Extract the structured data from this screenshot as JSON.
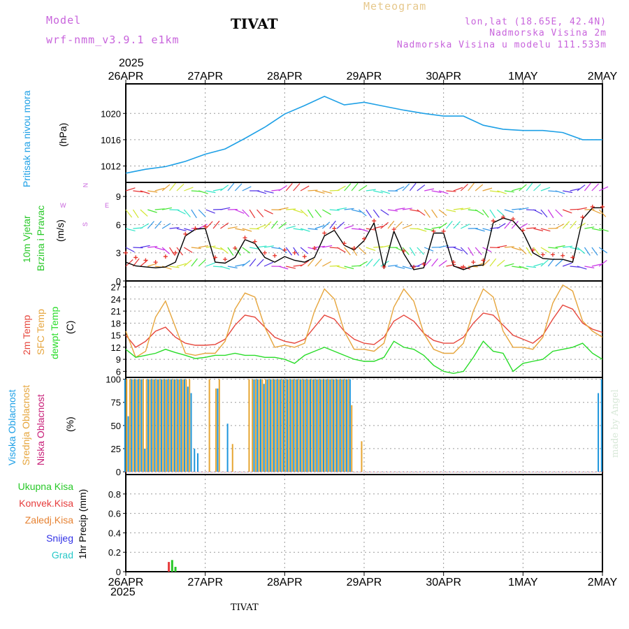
{
  "header": {
    "model_label": "Model",
    "model_name": "wrf-nmm_v3.9.1 e1km",
    "station_title": "TIVAT",
    "meteogram_label": "Meteogram",
    "lonlat": "lon,lat (18.65E, 42.4N)",
    "elevation": "Nadmorska Visina 2m",
    "model_elevation": "Nadmorska Visina u modelu 111.533m",
    "year_top": "2025"
  },
  "footer": {
    "year_bottom": "2025",
    "station": "TIVAT",
    "credit": "made by Angel"
  },
  "panel_labels": {
    "pressure": [
      "Pritisak na nivou mora"
    ],
    "pressure_unit": "(hPa)",
    "wind_a": "10m Vjetar",
    "wind_b": "Brzina i Pravac",
    "wind_unit": "(m/s)",
    "compass_n": "N",
    "compass_e": "E",
    "compass_w": "W",
    "compass_s": "S",
    "temp_a": "2m Temp",
    "temp_b": "SFC Temp",
    "temp_c": "dewpt Temp",
    "temp_unit": "(C)",
    "cloud_a": "Visoka Oblacnost",
    "cloud_b": "Srednja Oblacnost",
    "cloud_c": "Niska Oblacnost",
    "cloud_unit": "(%)",
    "precip_a": "Ukupna Kisa",
    "precip_b": "Konvek.Kisa",
    "precip_c": "Zaledj.Kisa",
    "precip_d": "Snijeg",
    "precip_e": "Grad",
    "precip_unit": "1hr Precip (mm)"
  },
  "colors": {
    "pressure": "#1ea0e6",
    "temp2m": "#e6463c",
    "sfc": "#e6a53c",
    "dewpt": "#28dc28",
    "wind_line": "#000000",
    "wind_gust": "#e63228",
    "cloud_high": "#1e96dc",
    "cloud_mid": "#e6a532",
    "cloud_low": "#c81e78",
    "model_text": "#c864dc",
    "meteogram_text": "#e6c88c",
    "precip_total": "#28c828",
    "precip_conv": "#e63c3c",
    "precip_frz": "#e68232",
    "snow": "#3232e6",
    "hail": "#28c8c8"
  },
  "chart_data": [
    {
      "type": "line",
      "name": "pressure",
      "x_ticks": [
        "26APR",
        "27APR",
        "28APR",
        "29APR",
        "30APR",
        "1MAY",
        "2MAY"
      ],
      "ylabel": "(hPa)",
      "ylim": [
        1009.5,
        1024.5
      ],
      "y_ticks": [
        1012,
        1016,
        1020
      ],
      "grid": true,
      "x_hours": [
        0,
        6,
        12,
        18,
        24,
        30,
        36,
        42,
        48,
        54,
        60,
        66,
        72,
        78,
        84,
        90,
        96,
        102,
        108,
        114,
        120,
        126,
        132,
        138,
        144
      ],
      "values": [
        1010.9,
        1011.5,
        1011.9,
        1012.7,
        1013.8,
        1014.6,
        1016.2,
        1017.9,
        1019.9,
        1021.2,
        1022.6,
        1021.3,
        1021.7,
        1021.1,
        1020.5,
        1020.0,
        1019.6,
        1019.6,
        1018.2,
        1017.6,
        1017.4,
        1017.4,
        1017.1,
        1016.0,
        1016.0
      ]
    },
    {
      "type": "line",
      "name": "wind",
      "ylabel": "(m/s)",
      "ylim": [
        0,
        10.5
      ],
      "y_ticks": [
        0,
        3,
        6,
        9
      ],
      "grid": true,
      "x_hours": [
        0,
        3,
        6,
        9,
        12,
        15,
        18,
        21,
        24,
        27,
        30,
        33,
        36,
        39,
        42,
        45,
        48,
        51,
        54,
        57,
        60,
        63,
        66,
        69,
        72,
        75,
        78,
        81,
        84,
        87,
        90,
        93,
        96,
        99,
        102,
        105,
        108,
        111,
        114,
        117,
        120,
        123,
        126,
        129,
        132,
        135,
        138,
        141,
        144
      ],
      "values": [
        2.0,
        1.6,
        1.5,
        1.4,
        1.5,
        2.0,
        4.8,
        5.5,
        5.6,
        2.0,
        1.9,
        2.5,
        4.4,
        4.0,
        2.5,
        2.0,
        2.6,
        2.2,
        2.0,
        2.5,
        4.8,
        5.4,
        3.8,
        3.3,
        4.3,
        6.2,
        1.3,
        5.3,
        2.9,
        1.2,
        1.4,
        5.1,
        5.1,
        1.6,
        1.2,
        1.6,
        1.7,
        6.2,
        6.7,
        6.4,
        5.2,
        3.0,
        2.4,
        2.3,
        2.3,
        2.0,
        6.6,
        7.8,
        7.8
      ],
      "gust": [
        3.0,
        2.5,
        2.2,
        2.0,
        2.6,
        3.0,
        5.0,
        5.6,
        5.8,
        2.5,
        2.3,
        3.5,
        4.6,
        4.2,
        3.0,
        2.7,
        3.3,
        3.0,
        2.6,
        3.5,
        5.1,
        5.6,
        4.0,
        3.5,
        4.5,
        6.4,
        1.5,
        5.5,
        3.2,
        1.5,
        1.8,
        5.3,
        5.3,
        2.0,
        1.5,
        2.0,
        2.2,
        6.4,
        6.8,
        6.6,
        5.4,
        3.3,
        2.8,
        2.8,
        2.7,
        2.5,
        6.8,
        7.9,
        7.9
      ]
    },
    {
      "type": "line",
      "name": "temperature",
      "ylabel": "(C)",
      "ylim": [
        4.5,
        28.5
      ],
      "y_ticks": [
        6,
        9,
        12,
        15,
        18,
        21,
        24,
        27
      ],
      "grid": true,
      "x_hours": [
        0,
        3,
        6,
        9,
        12,
        15,
        18,
        21,
        24,
        27,
        30,
        33,
        36,
        39,
        42,
        45,
        48,
        51,
        54,
        57,
        60,
        63,
        66,
        69,
        72,
        75,
        78,
        81,
        84,
        87,
        90,
        93,
        96,
        99,
        102,
        105,
        108,
        111,
        114,
        117,
        120,
        123,
        126,
        129,
        132,
        135,
        138,
        141,
        144
      ],
      "series": [
        {
          "name": "2m Temp",
          "values": [
            15.0,
            12.0,
            13.5,
            16.0,
            17.0,
            14.5,
            13.0,
            12.5,
            12.5,
            12.7,
            14.0,
            17.5,
            20.0,
            19.5,
            17.0,
            14.5,
            13.5,
            13.0,
            14.0,
            17.0,
            20.0,
            19.0,
            16.0,
            14.0,
            13.0,
            12.7,
            14.5,
            18.5,
            20.0,
            18.5,
            15.5,
            13.7,
            13.0,
            13.0,
            14.5,
            18.0,
            20.5,
            20.0,
            17.5,
            15.0,
            14.0,
            13.0,
            15.0,
            19.0,
            22.5,
            21.5,
            18.0,
            16.5,
            15.7
          ]
        },
        {
          "name": "SFC Temp",
          "values": [
            16.0,
            9.5,
            11.0,
            19.5,
            23.5,
            17.0,
            10.5,
            10.0,
            10.5,
            10.5,
            13.5,
            21.5,
            25.5,
            24.5,
            17.0,
            12.0,
            12.5,
            12.0,
            13.0,
            21.0,
            26.5,
            24.0,
            16.0,
            11.5,
            11.5,
            11.0,
            13.0,
            22.0,
            26.5,
            23.5,
            15.5,
            11.5,
            10.5,
            10.5,
            13.0,
            21.0,
            26.5,
            24.5,
            16.0,
            12.0,
            12.0,
            11.5,
            14.5,
            23.0,
            27.5,
            26.0,
            18.5,
            16.0,
            14.5
          ]
        },
        {
          "name": "dewpt Temp",
          "values": [
            11.5,
            9.5,
            10.0,
            10.5,
            11.5,
            10.7,
            10.0,
            9.2,
            9.5,
            10.0,
            10.0,
            10.5,
            10.0,
            10.0,
            9.5,
            9.5,
            9.0,
            8.0,
            10.0,
            11.0,
            12.0,
            11.0,
            10.0,
            9.0,
            8.5,
            8.5,
            9.5,
            13.5,
            12.0,
            11.5,
            10.0,
            7.5,
            6.0,
            5.5,
            6.0,
            9.5,
            13.5,
            11.0,
            10.5,
            6.0,
            8.0,
            8.5,
            9.0,
            11.0,
            11.5,
            12.0,
            13.0,
            10.5,
            9.0
          ]
        }
      ]
    },
    {
      "type": "bar",
      "name": "cloud_cover",
      "ylabel": "(%)",
      "ylim": [
        -3,
        102
      ],
      "y_ticks": [
        0,
        25,
        50,
        75,
        100
      ],
      "grid": true,
      "x_hours": [
        0,
        1,
        2,
        3,
        4,
        5,
        6,
        7,
        8,
        9,
        10,
        11,
        12,
        13,
        14,
        15,
        16,
        17,
        18,
        19,
        20,
        21,
        22,
        23,
        24,
        25,
        26,
        27,
        28,
        29,
        30,
        31,
        32,
        33,
        34,
        35,
        36,
        37,
        38,
        39,
        40,
        41,
        42,
        43,
        44,
        45,
        46,
        47,
        48,
        49,
        50,
        51,
        52,
        53,
        54,
        55,
        56,
        57,
        58,
        59,
        60,
        61,
        62,
        63,
        64,
        65,
        66,
        67,
        68,
        69,
        70,
        71,
        72,
        73,
        74,
        75,
        76,
        77,
        78,
        79,
        80,
        81,
        82,
        83,
        84,
        85,
        86,
        87,
        88,
        89,
        90,
        91,
        92,
        93,
        94,
        95,
        96,
        97,
        98,
        99,
        100,
        101,
        102,
        103,
        104,
        105,
        106,
        107,
        108,
        109,
        110,
        111,
        112,
        113,
        114,
        115,
        116,
        117,
        118,
        119,
        120,
        121,
        122,
        123,
        124,
        125,
        126,
        127,
        128,
        129,
        130,
        131,
        132,
        133,
        134,
        135,
        136,
        137,
        138,
        139,
        140,
        141,
        142,
        143,
        144
      ],
      "series": [
        {
          "name": "Visoka Oblacnost",
          "values": [
            100,
            60,
            100,
            100,
            100,
            100,
            25,
            100,
            100,
            100,
            100,
            100,
            100,
            100,
            100,
            100,
            100,
            100,
            100,
            92,
            85,
            25,
            20,
            0,
            0,
            0,
            0,
            0,
            90,
            0,
            0,
            52,
            0,
            0,
            0,
            0,
            0,
            0,
            0,
            100,
            100,
            100,
            95,
            100,
            100,
            100,
            100,
            100,
            100,
            100,
            100,
            100,
            100,
            100,
            100,
            100,
            100,
            100,
            100,
            100,
            100,
            100,
            100,
            100,
            100,
            100,
            100,
            100,
            100,
            0,
            0,
            0,
            0,
            0,
            0,
            0,
            0,
            0,
            0,
            0,
            0,
            0,
            0,
            0,
            0,
            0,
            0,
            0,
            0,
            0,
            0,
            0,
            0,
            0,
            0,
            0,
            0,
            0,
            0,
            0,
            0,
            0,
            0,
            0,
            0,
            0,
            0,
            0,
            0,
            0,
            0,
            0,
            0,
            0,
            0,
            0,
            0,
            0,
            0,
            0,
            0,
            0,
            0,
            0,
            0,
            0,
            0,
            0,
            0,
            0,
            0,
            0,
            0,
            0,
            0,
            0,
            0,
            0,
            0,
            0,
            0,
            0,
            0,
            85,
            100
          ]
        },
        {
          "name": "Srednja Oblacnost",
          "values": [
            100,
            100,
            100,
            100,
            100,
            100,
            100,
            100,
            100,
            100,
            100,
            100,
            100,
            100,
            100,
            100,
            100,
            100,
            100,
            100,
            0,
            0,
            0,
            0,
            0,
            100,
            0,
            90,
            100,
            0,
            0,
            0,
            30,
            0,
            0,
            0,
            0,
            100,
            100,
            100,
            100,
            100,
            100,
            100,
            100,
            100,
            100,
            100,
            100,
            100,
            100,
            100,
            100,
            100,
            100,
            100,
            100,
            100,
            100,
            100,
            100,
            100,
            100,
            100,
            100,
            100,
            100,
            100,
            72,
            0,
            0,
            33,
            0,
            0,
            0,
            0,
            0,
            0,
            0,
            0,
            0,
            0,
            0,
            0,
            0,
            0,
            0,
            0,
            0,
            0,
            0,
            0,
            0,
            0,
            0,
            0,
            0,
            0,
            0,
            0,
            0,
            0,
            0,
            0,
            0,
            0,
            0,
            0,
            0,
            0,
            0,
            0,
            0,
            0,
            0,
            0,
            0,
            0,
            0,
            0,
            0,
            0,
            0,
            0,
            0,
            0,
            0,
            0,
            0,
            0,
            0,
            0,
            0,
            0,
            0,
            0,
            0,
            0,
            0,
            0,
            0,
            0,
            0,
            0,
            0
          ]
        },
        {
          "name": "Niska Oblacnost",
          "values": [
            0,
            0,
            0,
            0,
            0,
            0,
            0,
            0,
            0,
            0,
            0,
            0,
            0,
            0,
            0,
            0,
            0,
            0,
            0,
            0,
            0,
            0,
            0,
            0,
            0,
            0,
            0,
            0,
            0,
            0,
            0,
            0,
            0,
            0,
            0,
            0,
            0,
            0,
            0,
            0,
            0,
            0,
            0,
            0,
            0,
            0,
            0,
            0,
            0,
            0,
            0,
            0,
            0,
            0,
            0,
            0,
            0,
            0,
            0,
            0,
            0,
            0,
            0,
            0,
            0,
            0,
            0,
            0,
            0,
            0,
            0,
            0,
            0,
            0,
            0,
            0,
            0,
            0,
            0,
            0,
            0,
            0,
            0,
            0,
            0,
            0,
            0,
            0,
            0,
            0,
            0,
            0,
            0,
            0,
            0,
            0,
            0,
            0,
            0,
            0,
            0,
            0,
            0,
            0,
            0,
            0,
            0,
            0,
            0,
            0,
            0,
            0,
            0,
            0,
            0,
            0,
            0,
            0,
            0,
            0,
            0,
            0,
            0,
            0,
            0,
            0,
            0,
            0,
            0,
            0,
            0,
            0,
            0,
            0,
            0,
            0,
            0,
            0,
            0,
            0,
            0,
            0,
            0,
            0,
            0
          ]
        }
      ]
    },
    {
      "type": "bar",
      "name": "precipitation",
      "ylabel": "1hr Precip (mm)",
      "ylim": [
        0,
        1.0
      ],
      "y_ticks": [
        0,
        0.2,
        0.4,
        0.6,
        0.8
      ],
      "grid": true,
      "x_hours": [
        13,
        14,
        15
      ],
      "series": [
        {
          "name": "Ukupna Kisa",
          "values": [
            0.0,
            0.12,
            0.05
          ]
        },
        {
          "name": "Konvek.Kisa",
          "values": [
            0.1,
            0.0,
            0.0
          ]
        }
      ]
    }
  ]
}
